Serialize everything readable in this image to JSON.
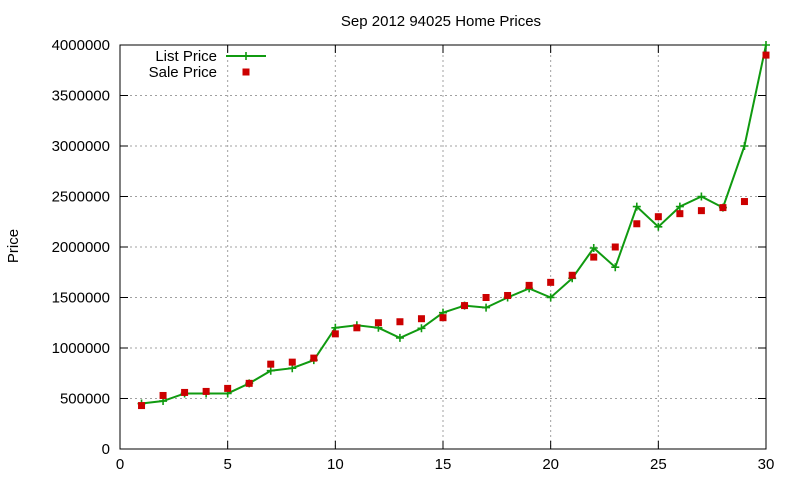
{
  "chart_data": {
    "type": "line",
    "title": "Sep 2012 94025 Home Prices",
    "xlabel": "",
    "ylabel": "Price",
    "xlim": [
      0,
      30
    ],
    "ylim": [
      0,
      4000000
    ],
    "xticks": [
      0,
      5,
      10,
      15,
      20,
      25,
      30
    ],
    "yticks": [
      0,
      500000,
      1000000,
      1500000,
      2000000,
      2500000,
      3000000,
      3500000,
      4000000
    ],
    "grid": true,
    "legend_position": "top-left",
    "x": [
      1,
      2,
      3,
      4,
      5,
      6,
      7,
      8,
      9,
      10,
      11,
      12,
      13,
      14,
      15,
      16,
      17,
      18,
      19,
      20,
      21,
      22,
      23,
      24,
      25,
      26,
      27,
      28,
      29,
      30
    ],
    "series": [
      {
        "name": "List Price",
        "style": "line-with-plus-markers",
        "color": "#109a10",
        "values": [
          450000,
          475000,
          550000,
          550000,
          550000,
          650000,
          775000,
          800000,
          880000,
          1200000,
          1225000,
          1200000,
          1100000,
          1195000,
          1350000,
          1420000,
          1400000,
          1500000,
          1590000,
          1500000,
          1690000,
          1990000,
          1800000,
          2400000,
          2200000,
          2400000,
          2500000,
          2390000,
          3000000,
          4000000
        ]
      },
      {
        "name": "Sale Price",
        "style": "square-markers",
        "color": "#cc0000",
        "values": [
          430000,
          530000,
          560000,
          570000,
          600000,
          650000,
          840000,
          860000,
          900000,
          1140000,
          1200000,
          1250000,
          1260000,
          1290000,
          1300000,
          1420000,
          1500000,
          1520000,
          1620000,
          1650000,
          1720000,
          1900000,
          2000000,
          2230000,
          2300000,
          2330000,
          2360000,
          2390000,
          2450000,
          3900000
        ]
      }
    ]
  }
}
